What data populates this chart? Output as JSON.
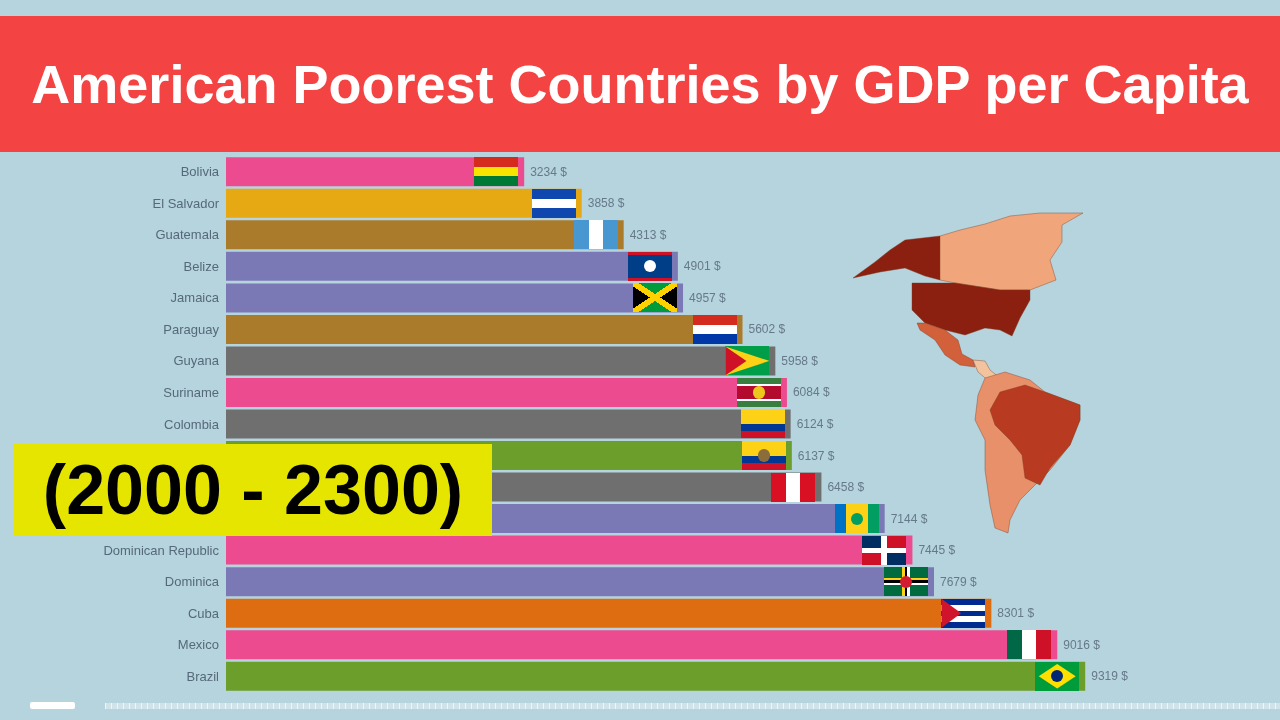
{
  "chart_data": {
    "type": "bar",
    "orientation": "horizontal",
    "title": "American Poorest Countries by GDP per Capita",
    "annotations": [
      "(2000 - 2300)"
    ],
    "categories": [
      "Bolivia",
      "El Salvador",
      "Guatemala",
      "Belize",
      "Jamaica",
      "Paraguay",
      "Guyana",
      "Suriname",
      "Colombia",
      null,
      null,
      null,
      "Dominican Republic",
      "Dominica",
      "Cuba",
      "Mexico",
      "Brazil"
    ],
    "values": [
      3234,
      3858,
      4313,
      4901,
      4957,
      5602,
      5958,
      6084,
      6124,
      6137,
      6458,
      7144,
      7445,
      7679,
      8301,
      9016,
      9319
    ],
    "colors": [
      "#ec4b8f",
      "#e6a914",
      "#a97b2b",
      "#7a79b6",
      "#7a79b6",
      "#a97b2b",
      "#6f6f70",
      "#ec4b8f",
      "#6f6f70",
      "#6b9e2b",
      "#6f6f70",
      "#7a79b6",
      "#ec4b8f",
      "#7a79b6",
      "#de6d12",
      "#ec4b8f",
      "#6b9e2b"
    ],
    "value_labels": [
      "3234 $",
      "3858 $",
      "4313 $",
      "4901 $",
      "4957 $",
      "5602 $",
      "5958 $",
      "6084 $",
      "6124 $",
      "6137 $",
      "6458 $",
      "7144 $",
      "7445 $",
      "7679 $",
      "8301 $",
      "9016 $",
      "9319 $"
    ]
  }
}
